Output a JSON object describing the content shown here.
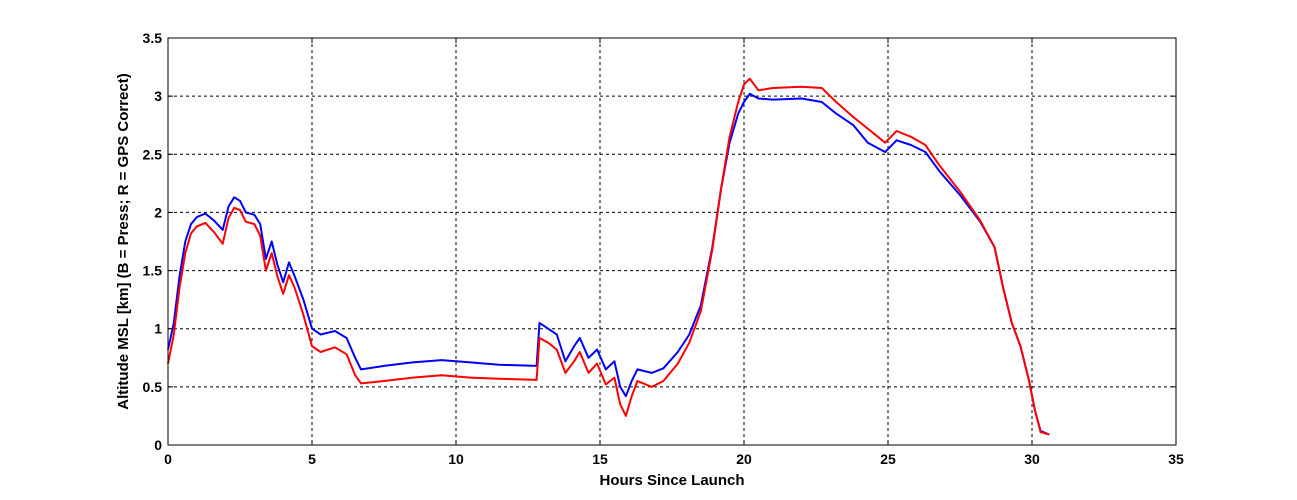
{
  "chart_data": {
    "type": "line",
    "title": "",
    "xlabel": "Hours Since Launch",
    "ylabel": "Altitude MSL [km]   (B = Press; R = GPS Correct)",
    "xlim": [
      0,
      35
    ],
    "ylim": [
      0,
      3.5
    ],
    "x_ticks": [
      "0",
      "5",
      "10",
      "15",
      "20",
      "25",
      "30",
      "35"
    ],
    "y_ticks": [
      "0",
      "0.5",
      "1",
      "1.5",
      "2",
      "2.5",
      "3",
      "3.5"
    ],
    "grid": true,
    "legend": "none",
    "series": [
      {
        "color": "#0000ff",
        "points": [
          [
            0.0,
            0.82
          ],
          [
            0.2,
            1.05
          ],
          [
            0.4,
            1.45
          ],
          [
            0.6,
            1.75
          ],
          [
            0.8,
            1.9
          ],
          [
            1.0,
            1.96
          ],
          [
            1.3,
            1.99
          ],
          [
            1.6,
            1.93
          ],
          [
            1.9,
            1.85
          ],
          [
            2.1,
            2.05
          ],
          [
            2.3,
            2.13
          ],
          [
            2.5,
            2.1
          ],
          [
            2.7,
            2.0
          ],
          [
            3.0,
            1.98
          ],
          [
            3.2,
            1.9
          ],
          [
            3.4,
            1.6
          ],
          [
            3.6,
            1.75
          ],
          [
            3.8,
            1.55
          ],
          [
            4.0,
            1.4
          ],
          [
            4.2,
            1.57
          ],
          [
            4.4,
            1.45
          ],
          [
            4.7,
            1.25
          ],
          [
            5.0,
            1.0
          ],
          [
            5.3,
            0.95
          ],
          [
            5.8,
            0.98
          ],
          [
            6.2,
            0.92
          ],
          [
            6.5,
            0.75
          ],
          [
            6.7,
            0.65
          ],
          [
            7.5,
            0.68
          ],
          [
            8.5,
            0.71
          ],
          [
            9.5,
            0.73
          ],
          [
            10.5,
            0.71
          ],
          [
            11.5,
            0.69
          ],
          [
            12.8,
            0.68
          ],
          [
            12.9,
            1.05
          ],
          [
            13.2,
            1.0
          ],
          [
            13.5,
            0.95
          ],
          [
            13.8,
            0.72
          ],
          [
            14.1,
            0.85
          ],
          [
            14.3,
            0.92
          ],
          [
            14.6,
            0.75
          ],
          [
            14.9,
            0.82
          ],
          [
            15.2,
            0.65
          ],
          [
            15.5,
            0.72
          ],
          [
            15.7,
            0.5
          ],
          [
            15.9,
            0.42
          ],
          [
            16.1,
            0.55
          ],
          [
            16.3,
            0.65
          ],
          [
            16.8,
            0.62
          ],
          [
            17.2,
            0.66
          ],
          [
            17.7,
            0.8
          ],
          [
            18.1,
            0.95
          ],
          [
            18.5,
            1.2
          ],
          [
            18.9,
            1.7
          ],
          [
            19.2,
            2.2
          ],
          [
            19.5,
            2.6
          ],
          [
            19.8,
            2.85
          ],
          [
            20.0,
            2.95
          ],
          [
            20.2,
            3.02
          ],
          [
            20.5,
            2.98
          ],
          [
            21.0,
            2.97
          ],
          [
            22.0,
            2.98
          ],
          [
            22.7,
            2.95
          ],
          [
            23.2,
            2.85
          ],
          [
            23.8,
            2.75
          ],
          [
            24.3,
            2.6
          ],
          [
            24.9,
            2.52
          ],
          [
            25.3,
            2.62
          ],
          [
            25.8,
            2.58
          ],
          [
            26.3,
            2.52
          ],
          [
            26.8,
            2.35
          ],
          [
            27.5,
            2.15
          ],
          [
            28.2,
            1.92
          ],
          [
            28.7,
            1.7
          ],
          [
            29.0,
            1.35
          ],
          [
            29.3,
            1.05
          ],
          [
            29.6,
            0.85
          ],
          [
            29.9,
            0.55
          ],
          [
            30.1,
            0.3
          ],
          [
            30.3,
            0.12
          ],
          [
            30.6,
            0.09
          ]
        ]
      },
      {
        "color": "#ff0000",
        "points": [
          [
            0.0,
            0.7
          ],
          [
            0.2,
            0.95
          ],
          [
            0.4,
            1.35
          ],
          [
            0.6,
            1.65
          ],
          [
            0.8,
            1.82
          ],
          [
            1.0,
            1.88
          ],
          [
            1.3,
            1.91
          ],
          [
            1.6,
            1.83
          ],
          [
            1.9,
            1.73
          ],
          [
            2.1,
            1.95
          ],
          [
            2.3,
            2.04
          ],
          [
            2.5,
            2.02
          ],
          [
            2.7,
            1.92
          ],
          [
            3.0,
            1.9
          ],
          [
            3.2,
            1.8
          ],
          [
            3.4,
            1.5
          ],
          [
            3.6,
            1.65
          ],
          [
            3.8,
            1.45
          ],
          [
            4.0,
            1.3
          ],
          [
            4.2,
            1.46
          ],
          [
            4.4,
            1.35
          ],
          [
            4.7,
            1.12
          ],
          [
            5.0,
            0.85
          ],
          [
            5.3,
            0.8
          ],
          [
            5.8,
            0.84
          ],
          [
            6.2,
            0.78
          ],
          [
            6.5,
            0.6
          ],
          [
            6.7,
            0.53
          ],
          [
            7.5,
            0.55
          ],
          [
            8.5,
            0.58
          ],
          [
            9.5,
            0.6
          ],
          [
            10.5,
            0.58
          ],
          [
            11.5,
            0.57
          ],
          [
            12.8,
            0.56
          ],
          [
            12.9,
            0.92
          ],
          [
            13.2,
            0.88
          ],
          [
            13.5,
            0.82
          ],
          [
            13.8,
            0.62
          ],
          [
            14.1,
            0.72
          ],
          [
            14.3,
            0.8
          ],
          [
            14.6,
            0.62
          ],
          [
            14.9,
            0.7
          ],
          [
            15.2,
            0.52
          ],
          [
            15.5,
            0.58
          ],
          [
            15.7,
            0.35
          ],
          [
            15.9,
            0.25
          ],
          [
            16.1,
            0.42
          ],
          [
            16.3,
            0.55
          ],
          [
            16.8,
            0.5
          ],
          [
            17.2,
            0.55
          ],
          [
            17.7,
            0.7
          ],
          [
            18.1,
            0.88
          ],
          [
            18.5,
            1.15
          ],
          [
            18.9,
            1.68
          ],
          [
            19.2,
            2.2
          ],
          [
            19.5,
            2.65
          ],
          [
            19.8,
            2.95
          ],
          [
            20.0,
            3.1
          ],
          [
            20.2,
            3.15
          ],
          [
            20.5,
            3.05
          ],
          [
            21.0,
            3.07
          ],
          [
            22.0,
            3.08
          ],
          [
            22.7,
            3.07
          ],
          [
            23.2,
            2.95
          ],
          [
            23.8,
            2.82
          ],
          [
            24.3,
            2.72
          ],
          [
            24.9,
            2.6
          ],
          [
            25.3,
            2.7
          ],
          [
            25.8,
            2.65
          ],
          [
            26.3,
            2.58
          ],
          [
            26.8,
            2.4
          ],
          [
            27.5,
            2.18
          ],
          [
            28.2,
            1.93
          ],
          [
            28.7,
            1.7
          ],
          [
            29.0,
            1.35
          ],
          [
            29.3,
            1.05
          ],
          [
            29.6,
            0.85
          ],
          [
            29.9,
            0.55
          ],
          [
            30.1,
            0.3
          ],
          [
            30.3,
            0.11
          ],
          [
            30.6,
            0.09
          ]
        ]
      }
    ]
  }
}
